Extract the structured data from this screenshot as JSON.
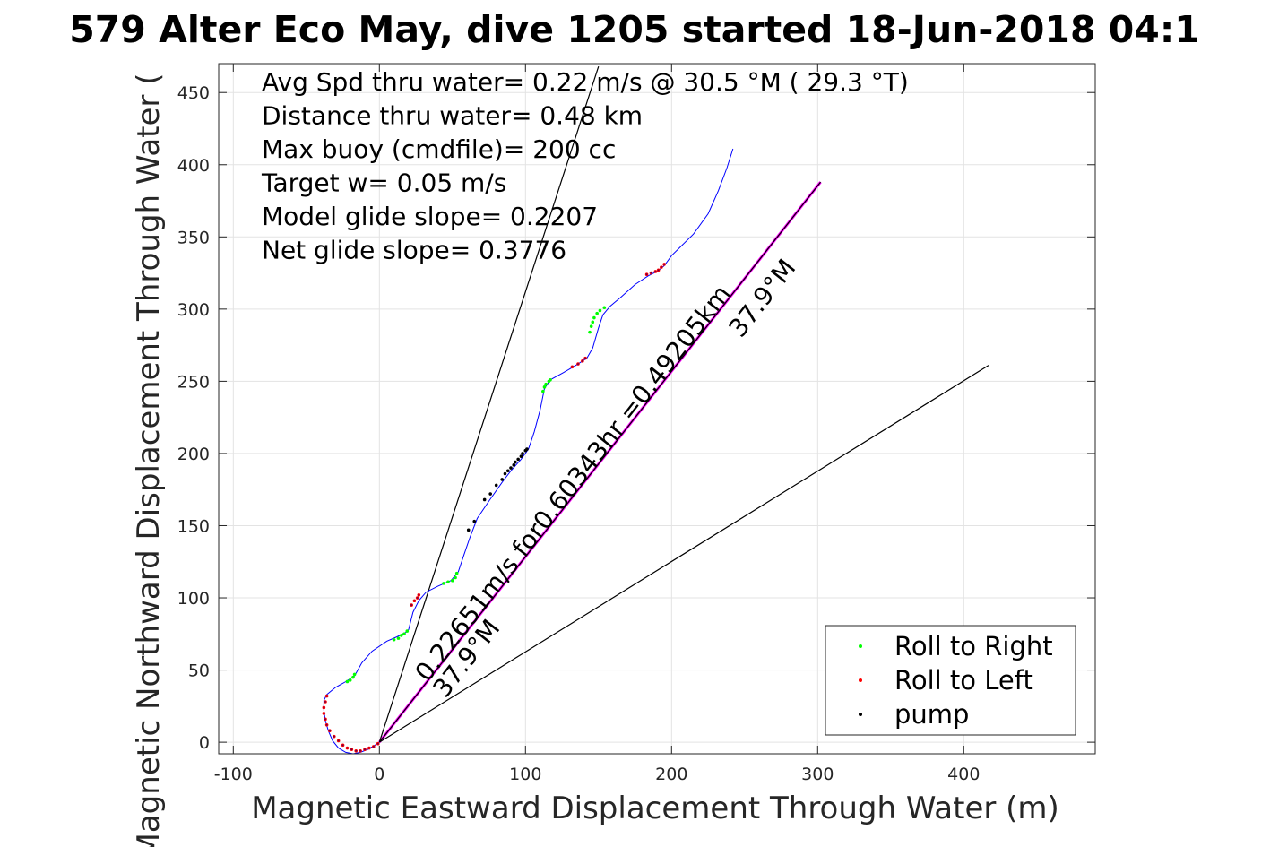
{
  "chart_data": {
    "type": "line",
    "title": "579 Alter Eco May, dive 1205 started 18-Jun-2018 04:1",
    "xlabel": "Magnetic Eastward Displacement Through Water (m)",
    "ylabel": "Magnetic Northward Displacement Through Water (",
    "xlim": [
      -110,
      490
    ],
    "ylim": [
      -8,
      470
    ],
    "x_ticks": [
      "-100",
      "0",
      "100",
      "200",
      "300",
      "400"
    ],
    "y_ticks": [
      "0",
      "50",
      "100",
      "150",
      "200",
      "250",
      "300",
      "350",
      "400",
      "450"
    ],
    "grid": true,
    "info_text": [
      "Avg Spd thru water=  0.22 m/s @  30.5 °M ( 29.3 °T)",
      "Distance thru water=  0.48 km",
      "Max buoy (cmdfile)= 200 cc",
      "Target w= 0.05 m/s",
      "Model glide slope= 0.2207",
      "Net glide slope= 0.3776"
    ],
    "annotations": [
      "0.22651m/s for0.60343hr =0.49205km",
      "37.9°M",
      "37.9°M"
    ],
    "legend": {
      "position": "bottom-right",
      "entries": [
        {
          "label": "Roll to Right",
          "color": "#00ff00"
        },
        {
          "label": "Roll to Left",
          "color": "#ff0000"
        },
        {
          "label": "pump",
          "color": "#000000"
        }
      ]
    },
    "track": {
      "color": "#0000ff",
      "points": [
        [
          0,
          0
        ],
        [
          -3,
          -2
        ],
        [
          -8,
          -5
        ],
        [
          -13,
          -7
        ],
        [
          -18,
          -8
        ],
        [
          -23,
          -7
        ],
        [
          -28,
          -4
        ],
        [
          -32,
          1
        ],
        [
          -35,
          8
        ],
        [
          -37,
          15
        ],
        [
          -38,
          22
        ],
        [
          -38,
          29
        ],
        [
          -36,
          33
        ],
        [
          -30,
          38
        ],
        [
          -23,
          42
        ],
        [
          -17,
          46
        ],
        [
          -12,
          55
        ],
        [
          -5,
          63
        ],
        [
          5,
          70
        ],
        [
          12,
          73
        ],
        [
          18,
          76
        ],
        [
          20,
          78
        ],
        [
          23,
          90
        ],
        [
          27,
          98
        ],
        [
          32,
          104
        ],
        [
          40,
          108
        ],
        [
          49,
          112
        ],
        [
          54,
          118
        ],
        [
          58,
          130
        ],
        [
          62,
          142
        ],
        [
          67,
          155
        ],
        [
          75,
          167
        ],
        [
          84,
          180
        ],
        [
          90,
          188
        ],
        [
          97,
          196
        ],
        [
          102,
          203
        ],
        [
          106,
          215
        ],
        [
          110,
          230
        ],
        [
          113,
          245
        ],
        [
          117,
          251
        ],
        [
          126,
          256
        ],
        [
          136,
          262
        ],
        [
          142,
          266
        ],
        [
          146,
          273
        ],
        [
          150,
          287
        ],
        [
          153,
          296
        ],
        [
          158,
          302
        ],
        [
          165,
          308
        ],
        [
          175,
          317
        ],
        [
          184,
          323
        ],
        [
          190,
          326
        ],
        [
          195,
          330
        ],
        [
          200,
          337
        ],
        [
          207,
          344
        ],
        [
          215,
          352
        ],
        [
          225,
          366
        ],
        [
          232,
          382
        ],
        [
          238,
          398
        ],
        [
          242,
          411
        ]
      ]
    },
    "roll_right_points": [
      [
        -22,
        42
      ],
      [
        -20,
        43
      ],
      [
        -18,
        45
      ],
      [
        -17,
        47
      ],
      [
        10,
        71
      ],
      [
        13,
        72
      ],
      [
        15,
        74
      ],
      [
        17,
        75
      ],
      [
        19,
        77
      ],
      [
        44,
        110
      ],
      [
        47,
        111
      ],
      [
        50,
        112
      ],
      [
        52,
        114
      ],
      [
        53,
        117
      ],
      [
        112,
        243
      ],
      [
        113,
        246
      ],
      [
        114,
        248
      ],
      [
        116,
        250
      ],
      [
        117,
        251
      ],
      [
        144,
        284
      ],
      [
        145,
        288
      ],
      [
        146,
        291
      ],
      [
        147,
        294
      ],
      [
        149,
        297
      ],
      [
        151,
        299
      ],
      [
        154,
        301
      ]
    ],
    "roll_left_points": [
      [
        -36,
        32
      ],
      [
        -37,
        28
      ],
      [
        -38,
        24
      ],
      [
        -38,
        20
      ],
      [
        -37,
        16
      ],
      [
        -36,
        12
      ],
      [
        -34,
        8
      ],
      [
        -31,
        4
      ],
      [
        -28,
        1
      ],
      [
        -25,
        -2
      ],
      [
        -22,
        -4
      ],
      [
        -19,
        -5
      ],
      [
        -16,
        -6
      ],
      [
        -13,
        -6
      ],
      [
        -10,
        -5
      ],
      [
        -7,
        -4
      ],
      [
        -4,
        -3
      ],
      [
        -1,
        -1
      ],
      [
        22,
        95
      ],
      [
        24,
        98
      ],
      [
        26,
        100
      ],
      [
        27,
        102
      ],
      [
        132,
        260
      ],
      [
        136,
        262
      ],
      [
        139,
        264
      ],
      [
        141,
        266
      ],
      [
        183,
        324
      ],
      [
        186,
        325
      ],
      [
        189,
        326
      ],
      [
        191,
        327
      ],
      [
        193,
        329
      ],
      [
        195,
        331
      ]
    ],
    "pump_points": [
      [
        61,
        147
      ],
      [
        65,
        153
      ],
      [
        72,
        168
      ],
      [
        76,
        172
      ],
      [
        80,
        178
      ],
      [
        84,
        182
      ],
      [
        86,
        186
      ],
      [
        88,
        188
      ],
      [
        90,
        190
      ],
      [
        92,
        192
      ],
      [
        93,
        194
      ],
      [
        95,
        196
      ],
      [
        97,
        198
      ],
      [
        98,
        200
      ],
      [
        100,
        202
      ],
      [
        101,
        203
      ]
    ],
    "lines": [
      {
        "name": "net-track-line",
        "color": "#ff00ff",
        "from": [
          0,
          0
        ],
        "to": [
          302,
          388
        ]
      },
      {
        "name": "net-track-line-dark",
        "color": "#000000",
        "from": [
          0,
          0
        ],
        "to": [
          302,
          388
        ]
      },
      {
        "name": "bound-line-steep",
        "color": "#000000",
        "from": [
          0,
          0
        ],
        "to": [
          150,
          468
        ]
      },
      {
        "name": "bound-line-shallow",
        "color": "#000000",
        "from": [
          0,
          0
        ],
        "to": [
          417,
          261
        ]
      }
    ]
  }
}
